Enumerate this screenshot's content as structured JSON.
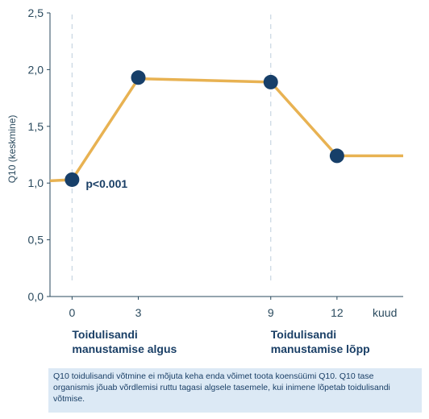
{
  "chart_data": {
    "type": "line",
    "ylabel": "Q10 (keskmine)",
    "ylim": [
      0,
      2.5
    ],
    "yticks": [
      "0,0",
      "0,5",
      "1,0",
      "1,5",
      "2,0",
      "2,5"
    ],
    "ytick_values": [
      0,
      0.5,
      1.0,
      1.5,
      2.0,
      2.5
    ],
    "xlim": [
      -1.0,
      15.0
    ],
    "xticks": [
      "0",
      "3",
      "9",
      "12"
    ],
    "xtick_values": [
      0,
      3,
      9,
      12
    ],
    "xunit": "kuud",
    "line": {
      "x": [
        -1.0,
        0,
        3,
        9,
        12,
        15
      ],
      "y": [
        1.02,
        1.03,
        1.92,
        1.89,
        1.24,
        1.24
      ]
    },
    "points": {
      "x": [
        0,
        3,
        9,
        12
      ],
      "y": [
        1.03,
        1.93,
        1.89,
        1.24
      ]
    },
    "vertical_markers": [
      0,
      9
    ],
    "annotation": {
      "text": "p<0.001",
      "x": 0,
      "y": 1.03
    },
    "grid": false,
    "line_color": "#e8b252",
    "point_color": "#173f69",
    "axis_color": "#2a4a5e"
  },
  "phases": {
    "start_line1": "Toidulisandi",
    "start_line2": "manustamise algus",
    "end_line1": "Toidulisandi",
    "end_line2": "manustamise lõpp"
  },
  "caption": "Q10 toidulisandi võtmine ei mõjuta keha enda võimet toota koensüümi Q10. Q10 tase organismis jõuab võrdlemisi ruttu tagasi algsele tasemele, kui inimene lõpetab toidulisandi võtmise."
}
